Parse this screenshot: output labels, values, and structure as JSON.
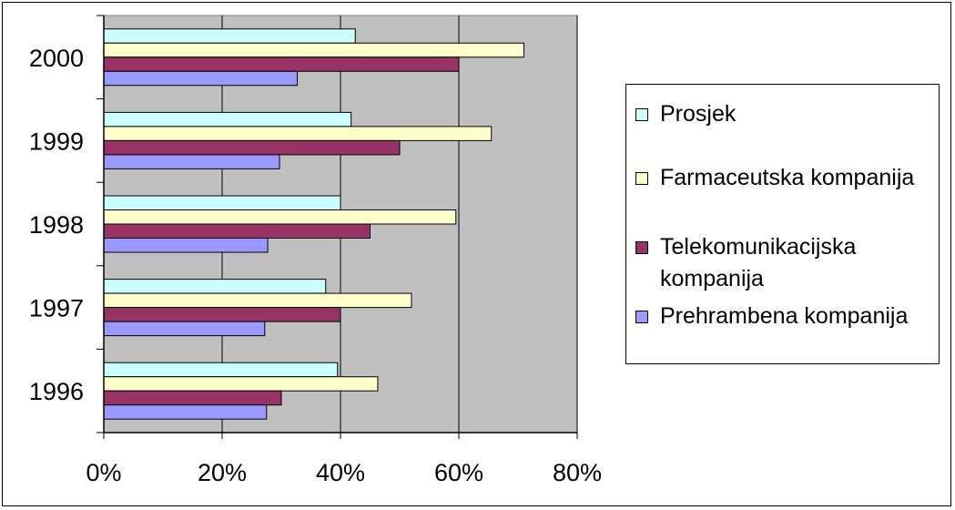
{
  "chart_data": {
    "type": "bar",
    "orientation": "horizontal",
    "categories": [
      "1996",
      "1997",
      "1998",
      "1999",
      "2000"
    ],
    "series": [
      {
        "name": "Prosjek",
        "color": "#ccffff",
        "values": [
          39.5,
          37.5,
          40,
          41.8,
          42.5
        ]
      },
      {
        "name": "Farmaceutska kompanija",
        "color": "#ffffcc",
        "values": [
          46.3,
          52,
          59.5,
          65.5,
          71
        ]
      },
      {
        "name": "Telekomunikacijska kompanija",
        "color": "#993366",
        "values": [
          30,
          40,
          45,
          50,
          60
        ]
      },
      {
        "name": "Prehrambena kompanija",
        "color": "#9999ff",
        "values": [
          27.5,
          27.2,
          27.7,
          29.7,
          32.7
        ]
      }
    ],
    "x_ticks": [
      "0%",
      "20%",
      "40%",
      "60%",
      "80%"
    ],
    "xlim": [
      0,
      80
    ],
    "plot_background": "#c0c0c0",
    "grid": "vertical",
    "legend_position": "right"
  }
}
